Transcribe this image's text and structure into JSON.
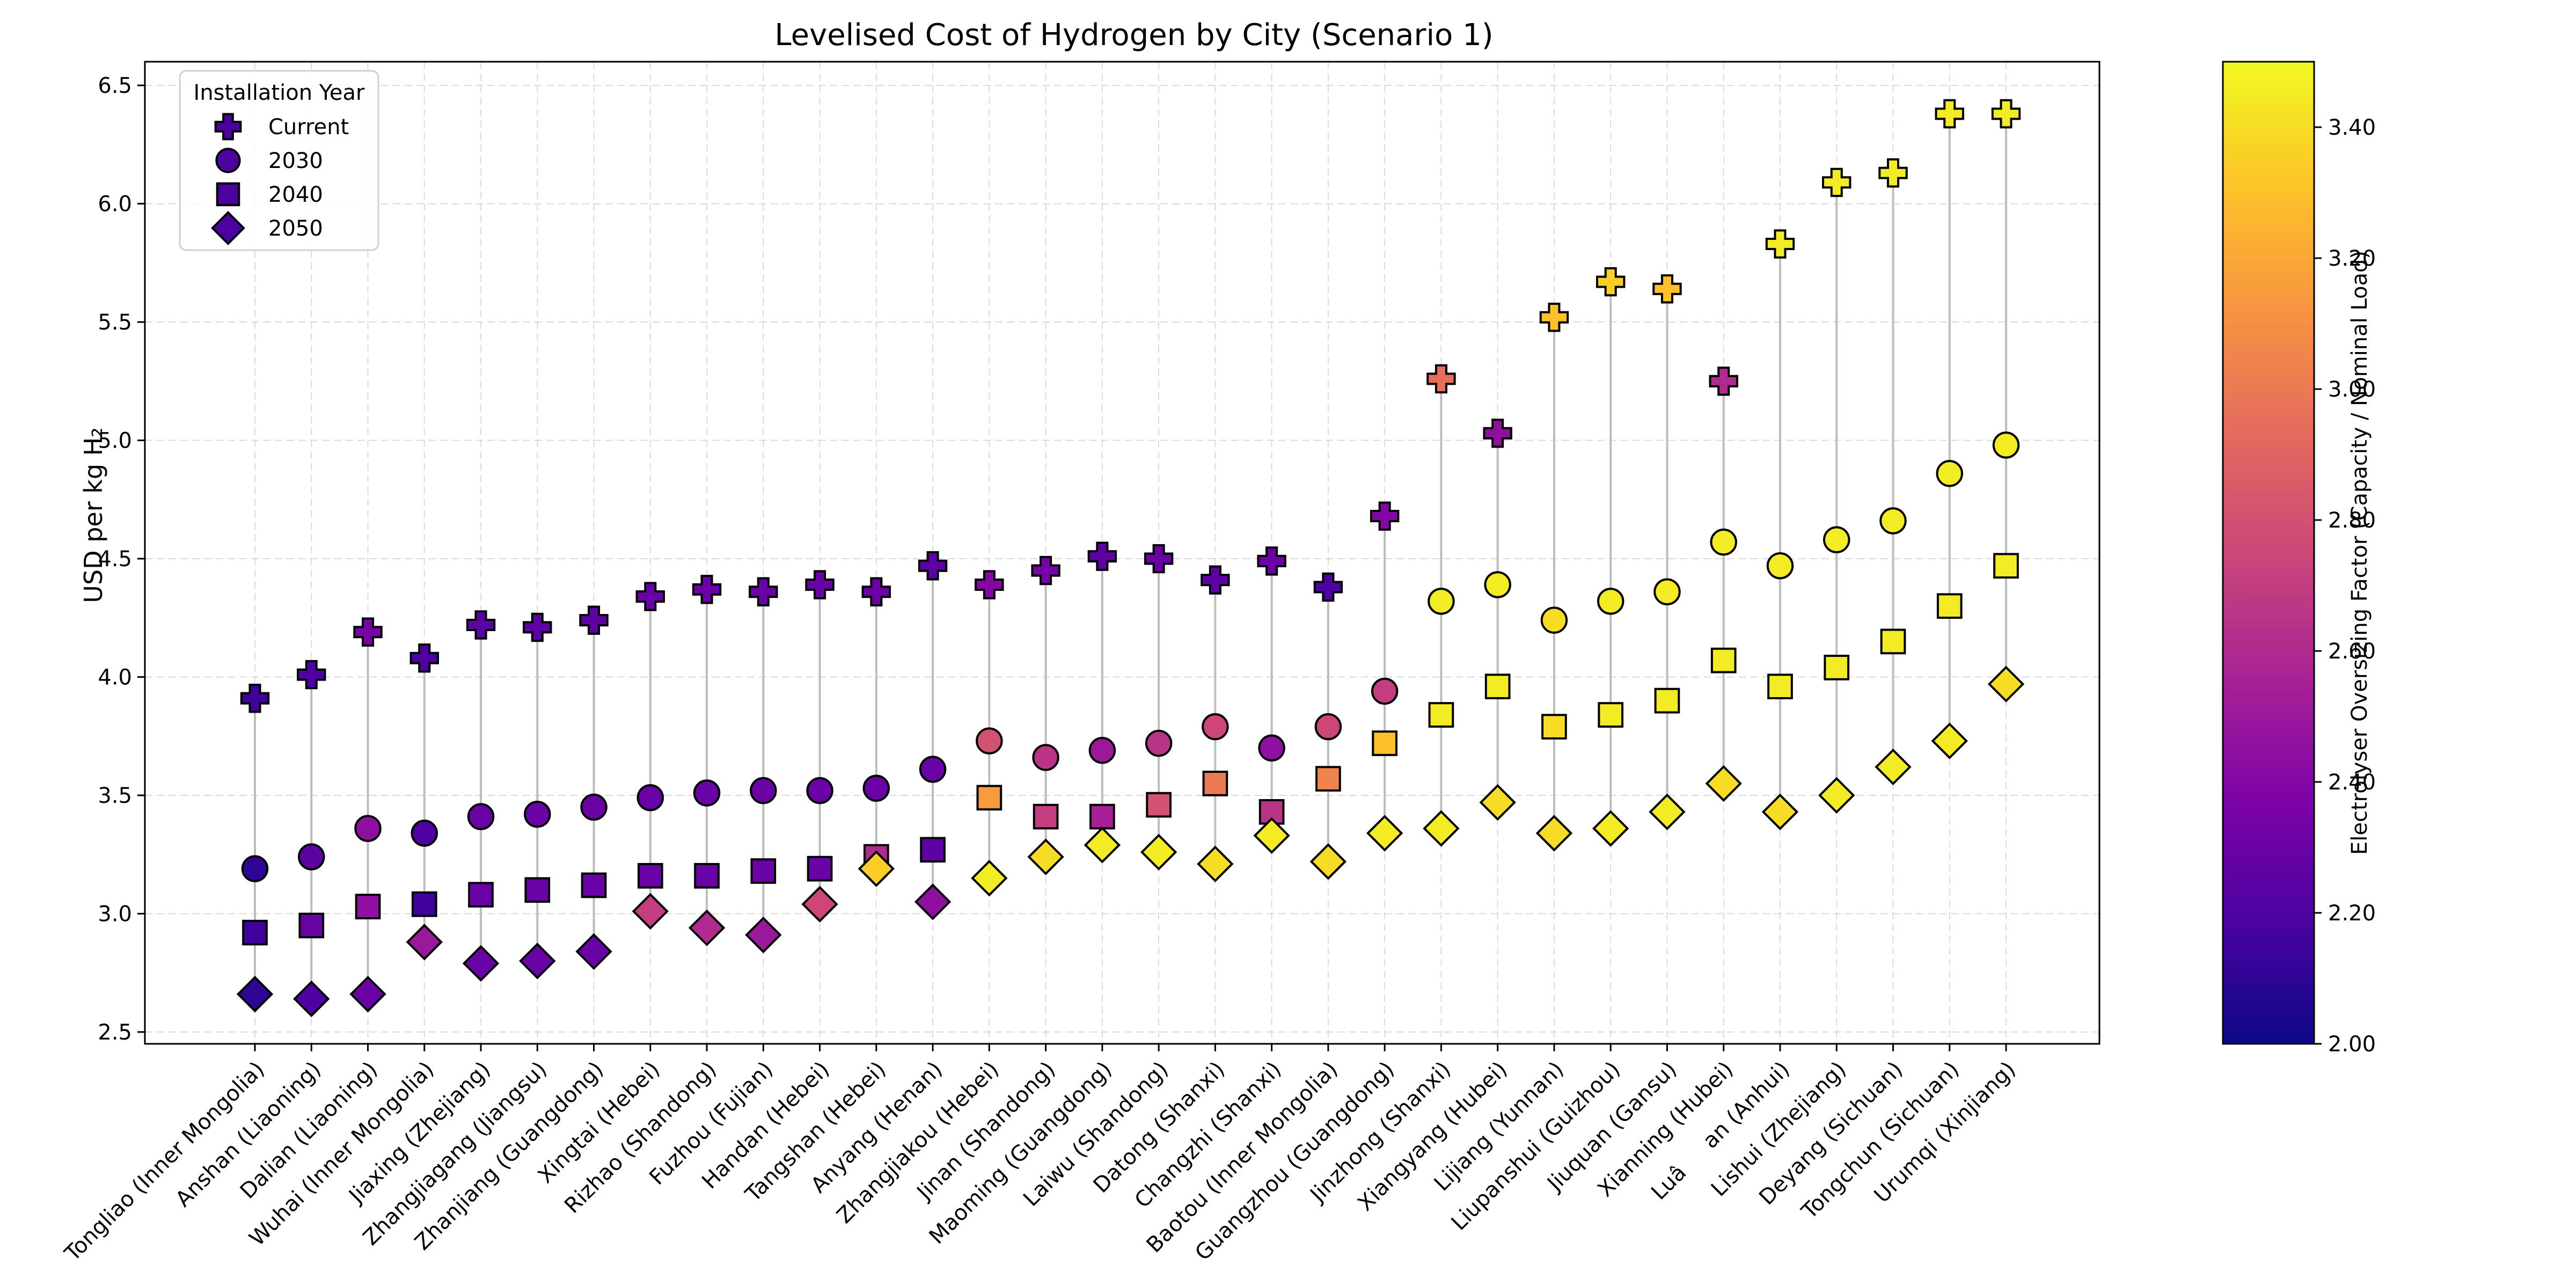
{
  "chart_data": {
    "type": "scatter",
    "title": "Levelised Cost of Hydrogen by City (Scenario 1)",
    "ylabel": "USD per kg H₂",
    "xlabel": "",
    "ylim": [
      2.45,
      6.6
    ],
    "yticks": [
      2.5,
      3.0,
      3.5,
      4.0,
      4.5,
      5.0,
      5.5,
      6.0,
      6.5
    ],
    "ytick_labels": [
      "2.5",
      "3.0",
      "3.5",
      "4.0",
      "4.5",
      "5.0",
      "5.5",
      "6.0",
      "6.5"
    ],
    "grid": true,
    "legend": {
      "title": "Installation Year",
      "placement": "top-left",
      "entries": [
        "Current",
        "2030",
        "2040",
        "2050"
      ],
      "markers": [
        "plus",
        "circle",
        "square",
        "diamond"
      ]
    },
    "colorbar": {
      "label": "Electrolyser Oversizing Factor (Capacity / Nominal Load)",
      "range": [
        2.0,
        3.5
      ],
      "ticks": [
        2.0,
        2.2,
        2.4,
        2.6,
        2.8,
        3.0,
        3.2,
        3.4
      ],
      "tick_labels": [
        "2.00",
        "2.20",
        "2.40",
        "2.60",
        "2.80",
        "3.00",
        "3.20",
        "3.40"
      ],
      "colormap": "plasma"
    },
    "categories": [
      "Tongliao (Inner Mongolia)",
      "Anshan (Liaoning)",
      "Dalian (Liaoning)",
      "Wuhai (Inner Mongolia)",
      "Jiaxing (Zhejiang)",
      "Zhangjiagang (Jiangsu)",
      "Zhanjiang (Guangdong)",
      "Xingtai (Hebei)",
      "Rizhao (Shandong)",
      "Fuzhou (Fujian)",
      "Handan (Hebei)",
      "Tangshan (Hebei)",
      "Anyang (Henan)",
      "Zhangjiakou (Hebei)",
      "Jinan (Shandong)",
      "Maoming (Guangdong)",
      "Laiwu (Shandong)",
      "Datong (Shanxi)",
      "Changzhi (Shanxi)",
      "Baotou (Inner Mongolia)",
      "Guangzhou (Guangdong)",
      "Jinzhong (Shanxi)",
      "Xiangyang (Hubei)",
      "Lijiang (Yunnan)",
      "Liupanshui (Guizhou)",
      "Jiuquan (Gansu)",
      "Xianning (Hubei)",
      "Luâan (Anhui)",
      "Lishui (Zhejiang)",
      "Deyang (Sichuan)",
      "Tongchun (Sichuan)",
      "Urumqi (Xinjiang)"
    ],
    "series": [
      {
        "name": "Current",
        "marker": "plus",
        "values": [
          3.91,
          4.01,
          4.19,
          4.08,
          4.22,
          4.21,
          4.24,
          4.34,
          4.37,
          4.36,
          4.39,
          4.36,
          4.47,
          4.39,
          4.45,
          4.51,
          4.5,
          4.41,
          4.49,
          4.38,
          4.68,
          5.26,
          5.03,
          5.52,
          5.67,
          5.64,
          5.25,
          5.83,
          6.09,
          6.13,
          6.38,
          6.38
        ],
        "oversizing": [
          2.15,
          2.2,
          2.35,
          2.2,
          2.25,
          2.25,
          2.25,
          2.3,
          2.3,
          2.3,
          2.3,
          2.3,
          2.25,
          2.4,
          2.35,
          2.25,
          2.3,
          2.25,
          2.3,
          2.2,
          2.4,
          2.95,
          2.45,
          3.3,
          3.35,
          3.3,
          2.6,
          3.45,
          3.45,
          3.45,
          3.45,
          3.45
        ]
      },
      {
        "name": "2030",
        "marker": "circle",
        "values": [
          3.19,
          3.24,
          3.36,
          3.34,
          3.41,
          3.42,
          3.45,
          3.49,
          3.51,
          3.52,
          3.52,
          3.53,
          3.61,
          3.73,
          3.66,
          3.69,
          3.72,
          3.79,
          3.7,
          3.79,
          3.94,
          4.32,
          4.39,
          4.24,
          4.32,
          4.36,
          4.57,
          4.47,
          4.58,
          4.66,
          4.86,
          4.98
        ],
        "oversizing": [
          2.1,
          2.25,
          2.45,
          2.2,
          2.3,
          2.3,
          2.3,
          2.3,
          2.3,
          2.3,
          2.3,
          2.3,
          2.3,
          2.8,
          2.65,
          2.5,
          2.65,
          2.75,
          2.45,
          2.75,
          2.7,
          3.45,
          3.45,
          3.4,
          3.45,
          3.45,
          3.45,
          3.45,
          3.45,
          3.45,
          3.45,
          3.45
        ]
      },
      {
        "name": "2040",
        "marker": "square",
        "values": [
          2.92,
          2.95,
          3.03,
          3.04,
          3.08,
          3.1,
          3.12,
          3.16,
          3.16,
          3.18,
          3.19,
          3.24,
          3.27,
          3.49,
          3.41,
          3.41,
          3.46,
          3.55,
          3.43,
          3.57,
          3.72,
          3.84,
          3.96,
          3.79,
          3.84,
          3.9,
          4.07,
          3.96,
          4.04,
          4.15,
          4.3,
          4.47
        ],
        "oversizing": [
          2.15,
          2.3,
          2.45,
          2.15,
          2.3,
          2.3,
          2.3,
          2.3,
          2.3,
          2.3,
          2.3,
          2.6,
          2.25,
          3.15,
          2.7,
          2.55,
          2.8,
          3.0,
          2.65,
          3.05,
          3.3,
          3.45,
          3.45,
          3.4,
          3.45,
          3.45,
          3.45,
          3.45,
          3.45,
          3.45,
          3.45,
          3.45
        ]
      },
      {
        "name": "2050",
        "marker": "diamond",
        "values": [
          2.66,
          2.64,
          2.66,
          2.88,
          2.79,
          2.8,
          2.84,
          3.01,
          2.94,
          2.91,
          3.04,
          3.19,
          3.05,
          3.15,
          3.24,
          3.29,
          3.26,
          3.21,
          3.33,
          3.22,
          3.34,
          3.36,
          3.47,
          3.34,
          3.36,
          3.43,
          3.55,
          3.43,
          3.5,
          3.62,
          3.73,
          3.97
        ],
        "oversizing": [
          2.1,
          2.2,
          2.3,
          2.5,
          2.3,
          2.3,
          2.3,
          2.7,
          2.6,
          2.5,
          2.75,
          3.35,
          2.45,
          3.45,
          3.4,
          3.45,
          3.45,
          3.4,
          3.45,
          3.4,
          3.45,
          3.45,
          3.4,
          3.4,
          3.45,
          3.45,
          3.4,
          3.4,
          3.45,
          3.45,
          3.45,
          3.4
        ]
      }
    ]
  }
}
